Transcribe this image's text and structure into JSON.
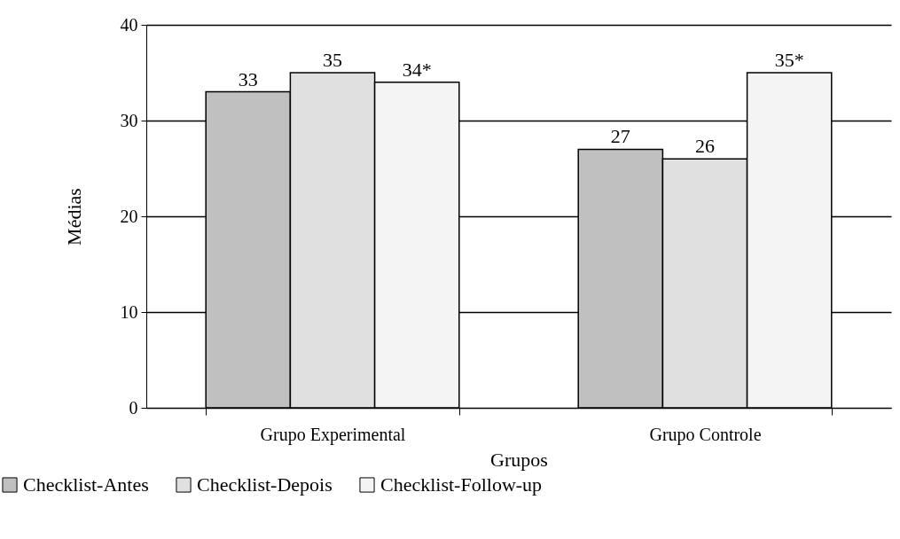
{
  "chart_data": {
    "type": "bar",
    "xlabel": "Grupos",
    "ylabel": "Médias",
    "categories": [
      "Grupo Experimental",
      "Grupo Controle"
    ],
    "series": [
      {
        "name": "Checklist-Antes",
        "color": "#c0c0c0",
        "values": [
          33,
          27
        ],
        "value_labels": [
          "33",
          "27"
        ]
      },
      {
        "name": "Checklist-Depois",
        "color": "#e0e0e0",
        "values": [
          35,
          26
        ],
        "value_labels": [
          "35",
          "26"
        ]
      },
      {
        "name": "Checklist-Follow-up",
        "color": "#f4f4f4",
        "values": [
          34,
          35
        ],
        "value_labels": [
          "34*",
          "35*"
        ]
      }
    ],
    "ylim": [
      0,
      40
    ],
    "yticks": [
      0,
      10,
      20,
      30,
      40
    ],
    "grid": "y",
    "legend": "bottom left"
  }
}
